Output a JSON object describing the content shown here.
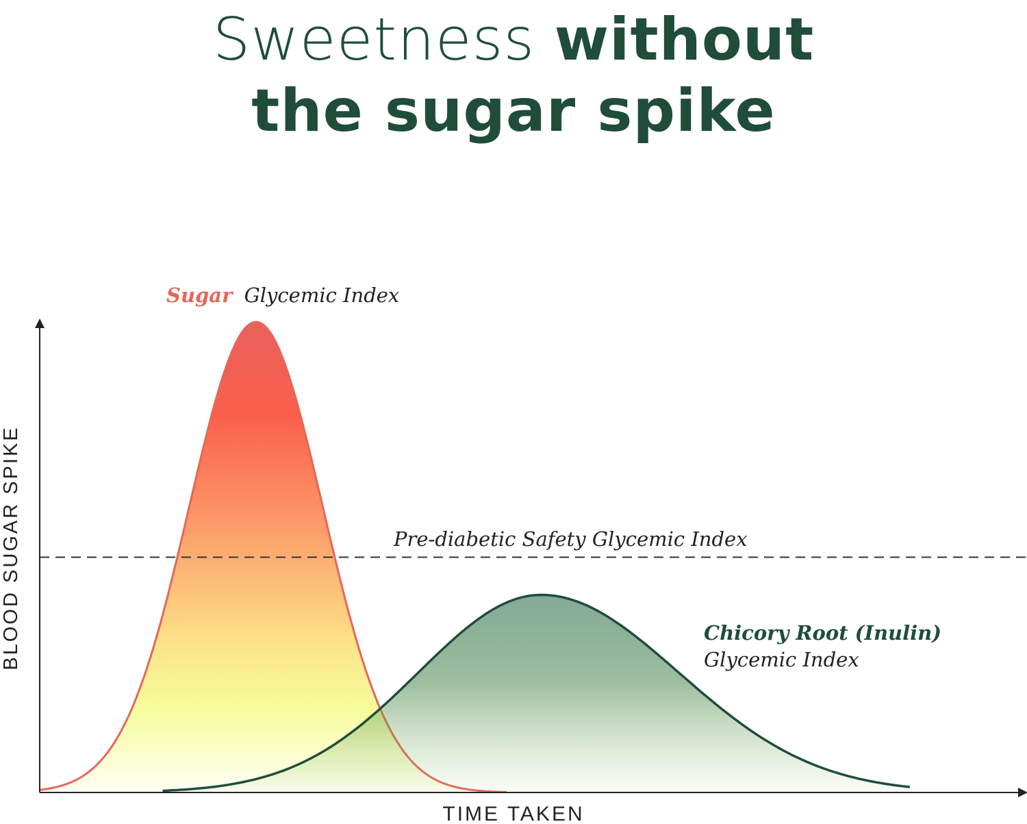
{
  "title": {
    "line1_light": "Sweetness",
    "line1_bold": "without",
    "line2": "the sugar spike"
  },
  "colors": {
    "brand_green": "#1f4d3a",
    "sugar_red": "#e5675a",
    "axis": "#222222"
  },
  "chart_data": {
    "type": "area",
    "xlabel": "TIME TAKEN",
    "ylabel": "BLOOD SUGAR SPIKE",
    "series": [
      {
        "name_highlight": "Sugar",
        "name_rest": "Glycemic Index",
        "peak_x": 0.22,
        "peak_y": 1.0,
        "color": "#e5675a"
      },
      {
        "name_line1": "Chicory Root (Inulin)",
        "name_line2": "Glycemic Index",
        "peak_x": 0.51,
        "peak_y": 0.42,
        "color": "#1f4d3a"
      }
    ],
    "threshold": {
      "label": "Pre-diabetic Safety Glycemic Index",
      "y": 0.5
    }
  }
}
